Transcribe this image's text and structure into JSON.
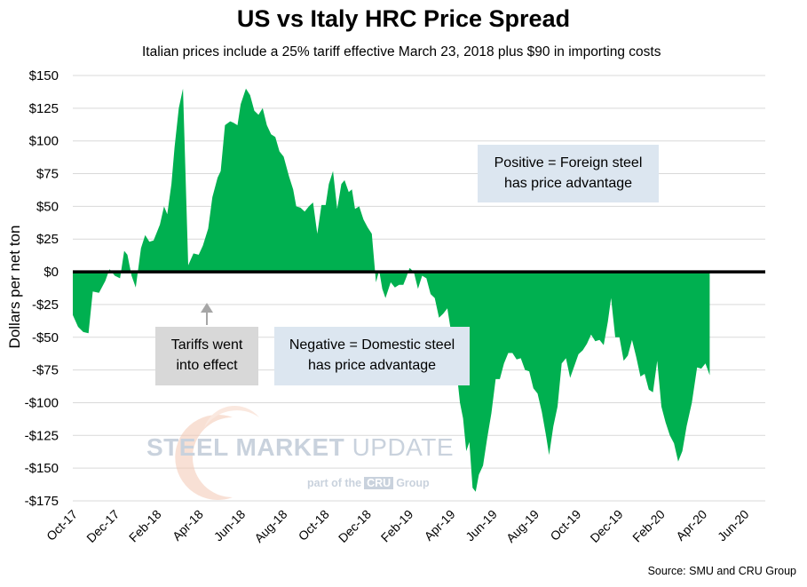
{
  "chart_data": {
    "type": "area",
    "title": "US vs Italy HRC Price Spread",
    "subtitle": "Italian prices include a 25% tariff effective March 23, 2018 plus $90 in importing costs",
    "ylabel": "Dollars per net ton",
    "xlabel": "",
    "ylim": [
      -175,
      150
    ],
    "yticks": [
      150,
      125,
      100,
      75,
      50,
      25,
      0,
      -25,
      -50,
      -75,
      -100,
      -125,
      -150,
      -175
    ],
    "ytick_labels": [
      "$150",
      "$125",
      "$100",
      "$75",
      "$50",
      "$25",
      "$0",
      "-$25",
      "-$50",
      "-$75",
      "-$100",
      "-$125",
      "-$150",
      "-$175"
    ],
    "x_tick_labels": [
      "Oct-17",
      "Dec-17",
      "Feb-18",
      "Apr-18",
      "Jun-18",
      "Aug-18",
      "Oct-18",
      "Dec-18",
      "Feb-19",
      "Apr-19",
      "Jun-19",
      "Aug-19",
      "Oct-19",
      "Dec-19",
      "Feb-20",
      "Apr-20",
      "Jun-20"
    ],
    "x_range_months": [
      0,
      33
    ],
    "series": [
      {
        "name": "US vs Italy HRC price spread",
        "color": "#00b050",
        "points": [
          [
            0.0,
            -33
          ],
          [
            0.25,
            -42
          ],
          [
            0.5,
            -46
          ],
          [
            0.75,
            -47
          ],
          [
            0.95,
            -15
          ],
          [
            1.25,
            -16
          ],
          [
            1.55,
            -7
          ],
          [
            1.75,
            2
          ],
          [
            2.0,
            -3
          ],
          [
            2.25,
            -5
          ],
          [
            2.45,
            16
          ],
          [
            2.6,
            13
          ],
          [
            2.8,
            -3
          ],
          [
            3.0,
            -12
          ],
          [
            3.25,
            18
          ],
          [
            3.45,
            28
          ],
          [
            3.65,
            23
          ],
          [
            3.85,
            24
          ],
          [
            4.15,
            36
          ],
          [
            4.35,
            50
          ],
          [
            4.5,
            44
          ],
          [
            4.7,
            67
          ],
          [
            4.85,
            95
          ],
          [
            5.05,
            125
          ],
          [
            5.25,
            140
          ],
          [
            5.5,
            5
          ],
          [
            5.75,
            14
          ],
          [
            6.0,
            13
          ],
          [
            6.2,
            20
          ],
          [
            6.45,
            33
          ],
          [
            6.65,
            57
          ],
          [
            6.9,
            72
          ],
          [
            7.05,
            77
          ],
          [
            7.25,
            112
          ],
          [
            7.5,
            115
          ],
          [
            7.65,
            114
          ],
          [
            7.85,
            112
          ],
          [
            8.0,
            128
          ],
          [
            8.25,
            140
          ],
          [
            8.45,
            135
          ],
          [
            8.65,
            123
          ],
          [
            8.85,
            120
          ],
          [
            9.05,
            125
          ],
          [
            9.25,
            112
          ],
          [
            9.45,
            105
          ],
          [
            9.65,
            103
          ],
          [
            9.85,
            92
          ],
          [
            10.05,
            88
          ],
          [
            10.3,
            73
          ],
          [
            10.5,
            63
          ],
          [
            10.65,
            50
          ],
          [
            10.85,
            49
          ],
          [
            11.05,
            46
          ],
          [
            11.25,
            50
          ],
          [
            11.45,
            53
          ],
          [
            11.65,
            29
          ],
          [
            11.85,
            51
          ],
          [
            12.05,
            51
          ],
          [
            12.2,
            67
          ],
          [
            12.4,
            77
          ],
          [
            12.6,
            48
          ],
          [
            12.8,
            67
          ],
          [
            12.95,
            70
          ],
          [
            13.15,
            61
          ],
          [
            13.3,
            63
          ],
          [
            13.45,
            48
          ],
          [
            13.65,
            50
          ],
          [
            13.85,
            40
          ],
          [
            14.05,
            34
          ],
          [
            14.25,
            29
          ],
          [
            14.45,
            -8
          ],
          [
            14.6,
            1
          ],
          [
            14.75,
            -13
          ],
          [
            14.9,
            -20
          ],
          [
            15.15,
            -8
          ],
          [
            15.35,
            -12
          ],
          [
            15.55,
            -10
          ],
          [
            15.75,
            -10
          ],
          [
            15.9,
            -4
          ],
          [
            16.05,
            3
          ],
          [
            16.25,
            0
          ],
          [
            16.45,
            -13
          ],
          [
            16.65,
            -3
          ],
          [
            16.85,
            -5
          ],
          [
            17.05,
            -17
          ],
          [
            17.25,
            -20
          ],
          [
            17.45,
            -35
          ],
          [
            17.65,
            -32
          ],
          [
            17.85,
            -28
          ],
          [
            18.05,
            -48
          ],
          [
            18.25,
            -70
          ],
          [
            18.45,
            -100
          ],
          [
            18.6,
            -112
          ],
          [
            18.75,
            -137
          ],
          [
            18.9,
            -130
          ],
          [
            19.05,
            -165
          ],
          [
            19.2,
            -168
          ],
          [
            19.35,
            -155
          ],
          [
            19.55,
            -148
          ],
          [
            19.75,
            -127
          ],
          [
            19.95,
            -108
          ],
          [
            20.15,
            -82
          ],
          [
            20.35,
            -82
          ],
          [
            20.55,
            -70
          ],
          [
            20.75,
            -62
          ],
          [
            20.95,
            -62
          ],
          [
            21.15,
            -67
          ],
          [
            21.35,
            -66
          ],
          [
            21.55,
            -75
          ],
          [
            21.75,
            -76
          ],
          [
            21.95,
            -89
          ],
          [
            22.15,
            -93
          ],
          [
            22.35,
            -107
          ],
          [
            22.55,
            -125
          ],
          [
            22.7,
            -140
          ],
          [
            22.9,
            -118
          ],
          [
            23.1,
            -103
          ],
          [
            23.3,
            -70
          ],
          [
            23.5,
            -66
          ],
          [
            23.7,
            -81
          ],
          [
            23.9,
            -72
          ],
          [
            24.1,
            -63
          ],
          [
            24.3,
            -60
          ],
          [
            24.5,
            -55
          ],
          [
            24.7,
            -48
          ],
          [
            24.9,
            -53
          ],
          [
            25.1,
            -52
          ],
          [
            25.3,
            -56
          ],
          [
            25.5,
            -38
          ],
          [
            25.65,
            -20
          ],
          [
            25.85,
            -50
          ],
          [
            26.05,
            -50
          ],
          [
            26.25,
            -68
          ],
          [
            26.45,
            -64
          ],
          [
            26.65,
            -52
          ],
          [
            26.85,
            -65
          ],
          [
            27.05,
            -80
          ],
          [
            27.25,
            -78
          ],
          [
            27.45,
            -90
          ],
          [
            27.65,
            -92
          ],
          [
            27.85,
            -68
          ],
          [
            28.05,
            -103
          ],
          [
            28.25,
            -115
          ],
          [
            28.45,
            -125
          ],
          [
            28.65,
            -131
          ],
          [
            28.85,
            -145
          ],
          [
            29.05,
            -137
          ],
          [
            29.25,
            -118
          ],
          [
            29.5,
            -100
          ],
          [
            29.75,
            -73
          ],
          [
            29.95,
            -74
          ],
          [
            30.15,
            -70
          ],
          [
            30.35,
            -79
          ]
        ]
      }
    ],
    "annotations": [
      {
        "id": "positive",
        "lines": [
          "Positive = Foreign steel",
          "has price advantage"
        ]
      },
      {
        "id": "negative",
        "lines": [
          "Negative = Domestic steel",
          "has price advantage"
        ]
      },
      {
        "id": "tariffs",
        "lines": [
          "Tariffs went",
          "into effect"
        ],
        "arrow_points_to": "Apr-18"
      }
    ],
    "source": "Source: SMU and CRU Group",
    "watermark": {
      "bold": "STEEL MARKET",
      "light": "UPDATE",
      "sub_prefix": "part of the",
      "sub_logo": "CRU",
      "sub_suffix": "Group"
    }
  }
}
